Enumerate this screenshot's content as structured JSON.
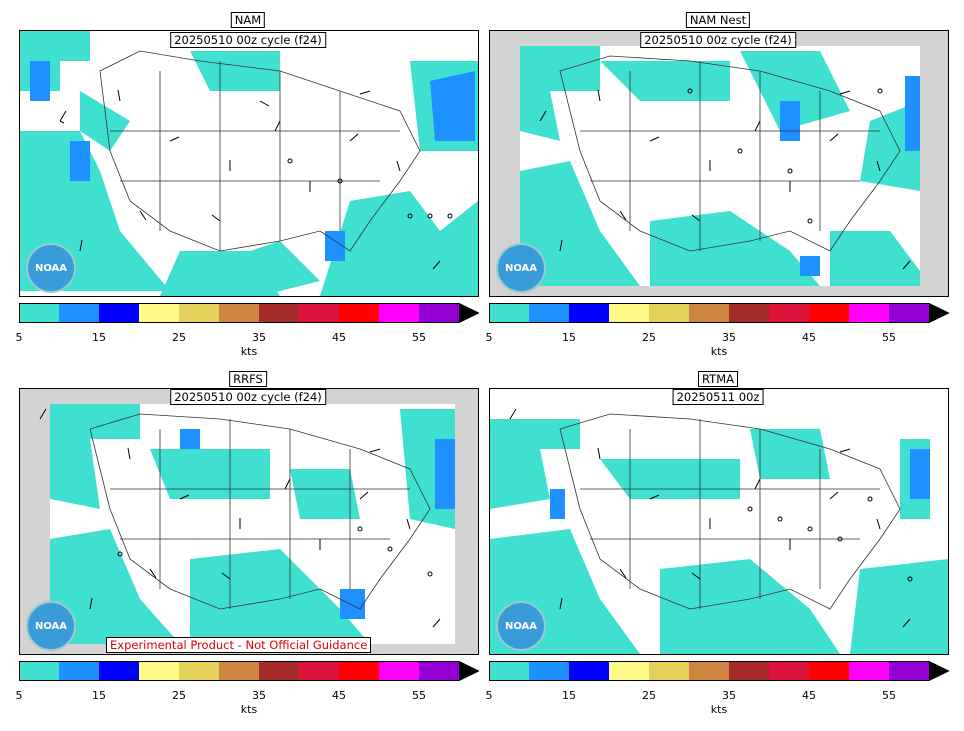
{
  "panels": [
    {
      "model": "NAM",
      "cycle": "20250510 00z cycle (f24)"
    },
    {
      "model": "NAM Nest",
      "cycle": "20250510 00z cycle (f24)"
    },
    {
      "model": "RRFS",
      "cycle": "20250510 00z cycle (f24)"
    },
    {
      "model": "RTMA",
      "cycle": "20250511 00z"
    }
  ],
  "colorbar": {
    "unit": "kts",
    "tick_labels": [
      "5",
      "15",
      "25",
      "35",
      "45",
      "55"
    ],
    "colors": [
      "#40e0d0",
      "#1e90ff",
      "#0000ff",
      "#fffa88",
      "#e5d25c",
      "#cd853f",
      "#a52a2a",
      "#dc143c",
      "#ff0000",
      "#ff00ff",
      "#9400d3"
    ],
    "extend_color": "#000000"
  },
  "disclaimer": "Experimental Product - Not Official Guidance",
  "logo": {
    "text": "NOAA"
  },
  "colors": {
    "no_data": "#d3d3d3",
    "land_fill": "#40e0d0",
    "moderate_fill": "#1e90ff"
  }
}
